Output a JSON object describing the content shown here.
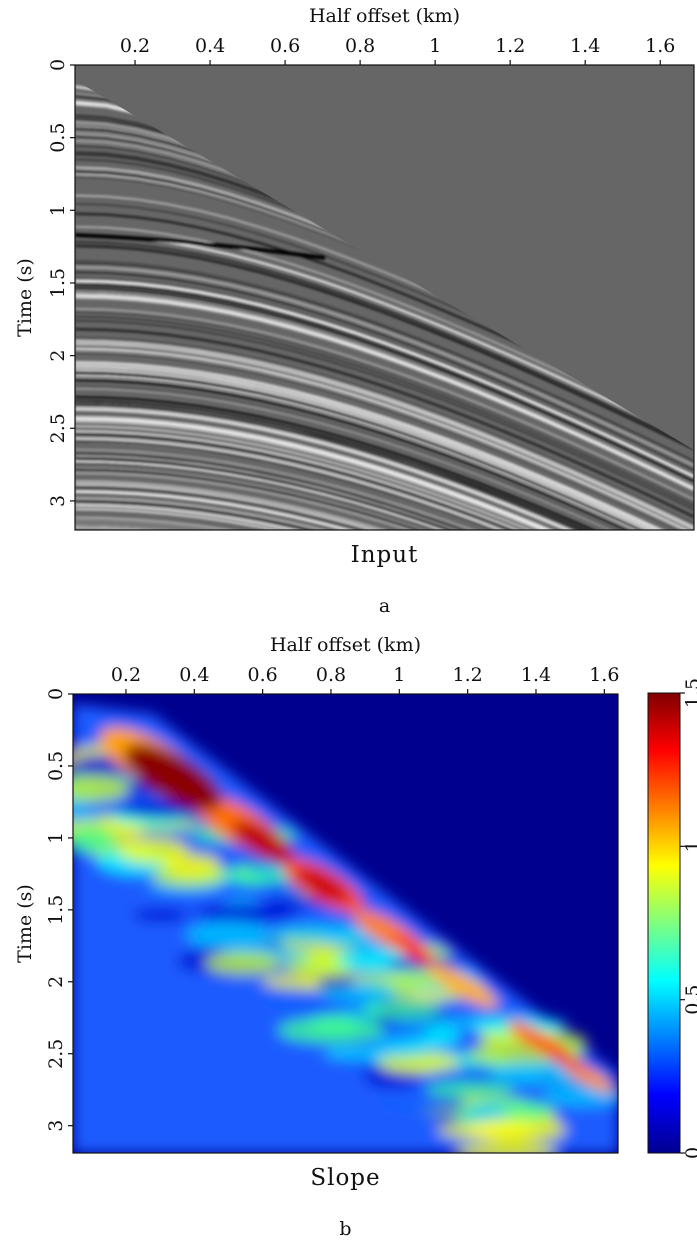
{
  "chart_data": [
    {
      "type": "image",
      "xlabel": "Half offset (km)",
      "ylabel": "Time (s)",
      "caption": "Input",
      "label": "a",
      "colormap": "gray",
      "yaxis_inverted": true,
      "xlim": [
        0.04,
        1.69
      ],
      "xticks": [
        0.2,
        0.4,
        0.6,
        0.8,
        1,
        1.2,
        1.4,
        1.6
      ],
      "ylim": [
        0,
        3.2
      ],
      "yticks": [
        0,
        0.5,
        1,
        1.5,
        2,
        2.5,
        3
      ]
    },
    {
      "type": "heatmap",
      "xlabel": "Half offset (km)",
      "ylabel": "Time (s)",
      "caption": "Slope",
      "label": "b",
      "colormap": "jet",
      "yaxis_inverted": true,
      "xlim": [
        0.045,
        1.64
      ],
      "xticks": [
        0.2,
        0.4,
        0.6,
        0.8,
        1,
        1.2,
        1.4,
        1.6
      ],
      "ylim": [
        0,
        3.19
      ],
      "yticks": [
        0,
        0.5,
        1,
        1.5,
        2,
        2.5,
        3
      ],
      "clim": [
        0,
        1.5
      ],
      "cticks": [
        0,
        0.5,
        1,
        1.5
      ]
    }
  ]
}
